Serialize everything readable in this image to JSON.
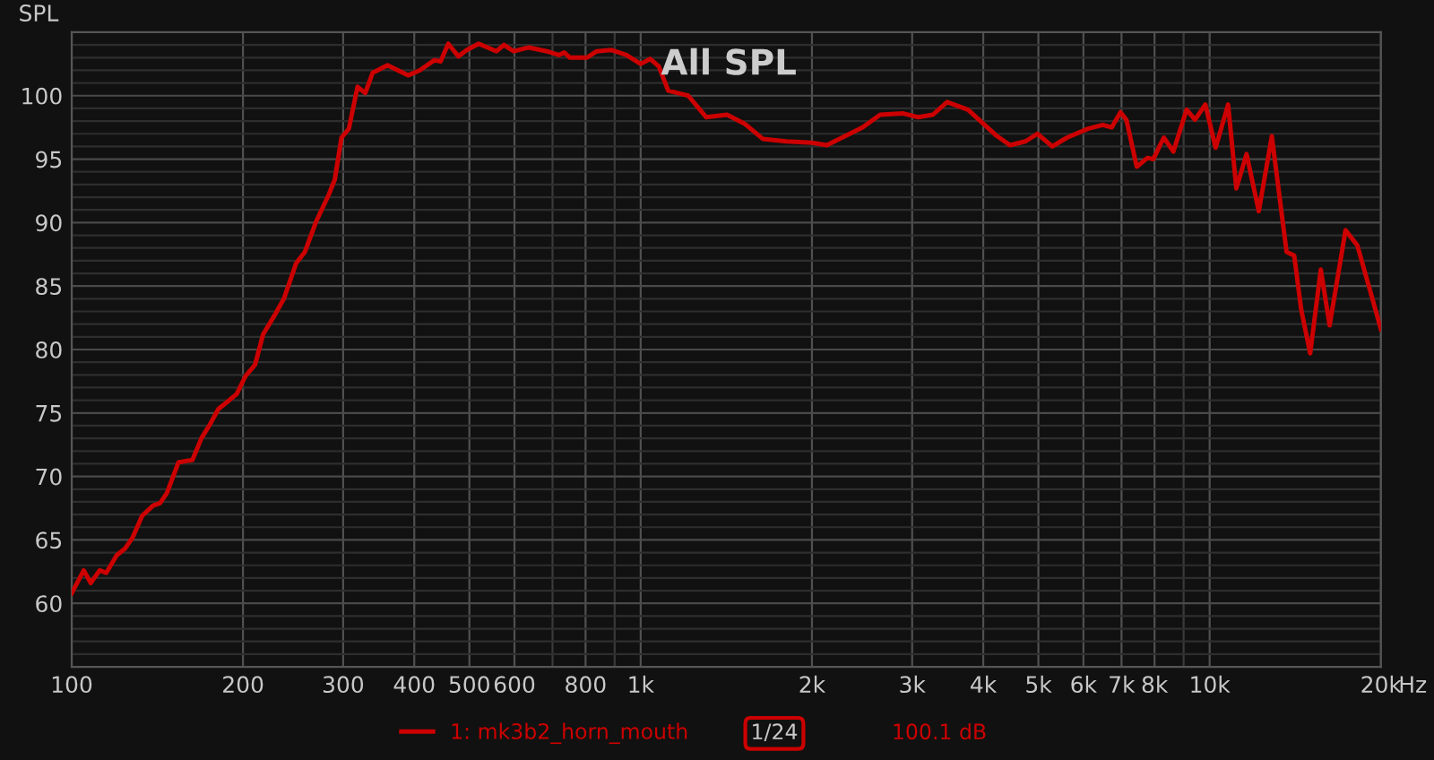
{
  "chart_data": {
    "type": "line",
    "title": "All SPL",
    "ylabel": "SPL",
    "log": "x",
    "grid": true,
    "legend": "bottom",
    "marker": "none",
    "line_style": "solid",
    "xlim": [
      100,
      20000
    ],
    "xticks": [
      100,
      200,
      300,
      400,
      500,
      600,
      {
        "value": 700,
        "label": null
      },
      800,
      {
        "value": 900,
        "label": null
      },
      {
        "value": 1000,
        "label": "1k"
      },
      {
        "value": 2000,
        "label": "2k"
      },
      {
        "value": 3000,
        "label": "3k"
      },
      {
        "value": 4000,
        "label": "4k"
      },
      {
        "value": 5000,
        "label": "5k"
      },
      {
        "value": 6000,
        "label": "6k"
      },
      {
        "value": 7000,
        "label": "7k"
      },
      {
        "value": 8000,
        "label": "8k"
      },
      {
        "value": 9000,
        "label": null
      },
      {
        "value": 10000,
        "label": "10k"
      },
      {
        "value": 20000,
        "label": "20k"
      }
    ],
    "xlabel": "Hz",
    "ylim": [
      55,
      105
    ],
    "yticks": [
      {
        "value": 56,
        "label": null
      },
      {
        "value": 57,
        "label": null
      },
      {
        "value": 58,
        "label": null
      },
      {
        "value": 59,
        "label": null
      },
      60,
      {
        "value": 61,
        "label": null
      },
      {
        "value": 62,
        "label": null
      },
      {
        "value": 63,
        "label": null
      },
      {
        "value": 64,
        "label": null
      },
      65,
      {
        "value": 66,
        "label": null
      },
      {
        "value": 67,
        "label": null
      },
      {
        "value": 68,
        "label": null
      },
      {
        "value": 69,
        "label": null
      },
      70,
      {
        "value": 71,
        "label": null
      },
      {
        "value": 72,
        "label": null
      },
      {
        "value": 73,
        "label": null
      },
      {
        "value": 74,
        "label": null
      },
      75,
      {
        "value": 76,
        "label": null
      },
      {
        "value": 77,
        "label": null
      },
      {
        "value": 78,
        "label": null
      },
      {
        "value": 79,
        "label": null
      },
      80,
      {
        "value": 81,
        "label": null
      },
      {
        "value": 82,
        "label": null
      },
      {
        "value": 83,
        "label": null
      },
      {
        "value": 84,
        "label": null
      },
      85,
      {
        "value": 86,
        "label": null
      },
      {
        "value": 87,
        "label": null
      },
      {
        "value": 88,
        "label": null
      },
      {
        "value": 89,
        "label": null
      },
      90,
      {
        "value": 91,
        "label": null
      },
      {
        "value": 92,
        "label": null
      },
      {
        "value": 93,
        "label": null
      },
      {
        "value": 94,
        "label": null
      },
      95,
      {
        "value": 96,
        "label": null
      },
      {
        "value": 97,
        "label": null
      },
      {
        "value": 98,
        "label": null
      },
      {
        "value": 99,
        "label": null
      },
      100,
      {
        "value": 101,
        "label": null
      },
      {
        "value": 102,
        "label": null
      },
      {
        "value": 103,
        "label": null
      },
      {
        "value": 104,
        "label": null
      }
    ],
    "annotations": [
      "1/24",
      "100.1 dB"
    ],
    "series": [
      {
        "name": "1: mk3b2_horn_mouth",
        "color": "#cc0000",
        "x": [
          100,
          105,
          108,
          112,
          115,
          120,
          124,
          128,
          133,
          139,
          143,
          147,
          154,
          158,
          163,
          169,
          175,
          181,
          188,
          195,
          202,
          210,
          217,
          228,
          236,
          248,
          257,
          269,
          283,
          290,
          298,
          307,
          318,
          328,
          338,
          359,
          390,
          409,
          434,
          445,
          459,
          478,
          495,
          519,
          558,
          575,
          598,
          636,
          684,
          718,
          734,
          751,
          805,
          837,
          889,
          944,
          1000,
          1039,
          1076,
          1118,
          1212,
          1304,
          1418,
          1522,
          1639,
          1802,
          2000,
          2124,
          2453,
          2636,
          2893,
          3074,
          3262,
          3456,
          3760,
          4207,
          4457,
          4745,
          4980,
          5290,
          5617,
          6110,
          6488,
          6725,
          6971,
          7140,
          7445,
          7775,
          7960,
          8306,
          8635,
          9110,
          9423,
          9826,
          10245,
          10775,
          11140,
          11610,
          12200,
          12860,
          13650,
          14080,
          14490,
          15020,
          15680,
          16250,
          17330,
          18180,
          20000
        ],
        "values": [
          60.8,
          62.6,
          61.6,
          62.6,
          62.4,
          63.8,
          64.3,
          65.2,
          66.9,
          67.7,
          67.9,
          68.7,
          71.1,
          71.2,
          71.3,
          73.0,
          74.1,
          75.3,
          75.9,
          76.5,
          77.9,
          78.8,
          81.2,
          82.8,
          84.0,
          86.8,
          87.7,
          90.1,
          92.2,
          93.4,
          96.7,
          97.4,
          100.7,
          100.2,
          101.8,
          102.4,
          101.6,
          102.0,
          102.8,
          102.7,
          104.1,
          103.1,
          103.6,
          104.1,
          103.5,
          104.0,
          103.5,
          103.8,
          103.5,
          103.2,
          103.4,
          103.0,
          103.0,
          103.5,
          103.6,
          103.2,
          102.5,
          102.9,
          102.3,
          100.4,
          100.0,
          98.3,
          98.5,
          97.8,
          96.6,
          96.4,
          96.3,
          96.1,
          97.5,
          98.5,
          98.6,
          98.3,
          98.5,
          99.5,
          98.9,
          96.9,
          96.1,
          96.4,
          97.0,
          96.0,
          96.7,
          97.4,
          97.7,
          97.5,
          98.7,
          98.1,
          94.4,
          95.1,
          95.0,
          96.7,
          95.6,
          98.9,
          98.1,
          99.3,
          95.9,
          99.3,
          92.7,
          95.4,
          90.9,
          96.8,
          87.7,
          87.4,
          83.1,
          79.7,
          86.3,
          81.9,
          89.4,
          88.2,
          81.6
        ]
      }
    ]
  }
}
